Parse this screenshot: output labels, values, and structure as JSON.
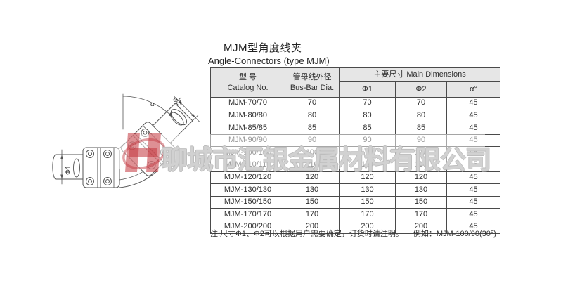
{
  "page": {
    "title": "MJM型角度线夹",
    "subtitle": "Angle-Connectors  (type MJM)"
  },
  "table": {
    "header": {
      "catalog_cn": "型 号",
      "catalog_en": "Catalog No.",
      "busbar_cn": "管母线外径",
      "busbar_en": "Bus-Bar Dia.",
      "main_dimensions": "主要尺寸 Main Dimensions",
      "phi1": "Φ1",
      "phi2": "Φ2",
      "alpha": "α°"
    },
    "rows": [
      [
        "MJM-70/70",
        "70",
        "70",
        "70",
        "45"
      ],
      [
        "MJM-80/80",
        "80",
        "80",
        "80",
        "45"
      ],
      [
        "MJM-85/85",
        "85",
        "85",
        "85",
        "45"
      ],
      [
        "MJM-90/90",
        "90",
        "90",
        "90",
        "45"
      ],
      [
        "MJM-100/100",
        "100",
        "100",
        "100",
        "45"
      ],
      [
        "MJM-110/110",
        "110",
        "110",
        "110",
        "45"
      ],
      [
        "MJM-120/120",
        "120",
        "120",
        "120",
        "45"
      ],
      [
        "MJM-130/130",
        "130",
        "130",
        "130",
        "45"
      ],
      [
        "MJM-150/150",
        "150",
        "150",
        "150",
        "45"
      ],
      [
        "MJM-170/170",
        "170",
        "170",
        "170",
        "45"
      ],
      [
        "MJM-200/200",
        "200",
        "200",
        "200",
        "45"
      ]
    ]
  },
  "note": {
    "text": "注:尺寸Φ1、Φ2可以根据用户需要确定，订货时请注明。",
    "example": "例如：MJM-100/90(30°)"
  },
  "drawing": {
    "alpha_label": "α",
    "phi1_label": "Φ1",
    "phi2_label": "ø2"
  },
  "watermark": {
    "company": "聊城市汇银金属材料有限公司"
  },
  "colors": {
    "header_bg": "#e6e6e6",
    "table_border": "#4a4a4a",
    "logo_red": "#c2343c",
    "watermark_outline": "#bdbdbd"
  }
}
